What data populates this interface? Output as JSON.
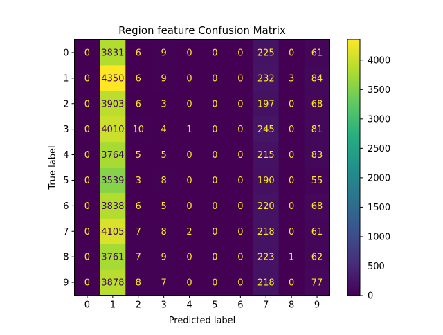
{
  "chart_data": {
    "type": "heatmap",
    "title": "Region feature Confusion Matrix",
    "xlabel": "Predicted label",
    "ylabel": "True label",
    "x_categories": [
      "0",
      "1",
      "2",
      "3",
      "4",
      "5",
      "6",
      "7",
      "8",
      "9"
    ],
    "y_categories": [
      "0",
      "1",
      "2",
      "3",
      "4",
      "5",
      "6",
      "7",
      "8",
      "9"
    ],
    "matrix": [
      [
        0,
        3831,
        6,
        9,
        0,
        0,
        0,
        225,
        0,
        61
      ],
      [
        0,
        4350,
        6,
        9,
        0,
        0,
        0,
        232,
        3,
        84
      ],
      [
        0,
        3903,
        6,
        3,
        0,
        0,
        0,
        197,
        0,
        68
      ],
      [
        0,
        4010,
        10,
        4,
        1,
        0,
        0,
        245,
        0,
        81
      ],
      [
        0,
        3764,
        5,
        5,
        0,
        0,
        0,
        215,
        0,
        83
      ],
      [
        0,
        3539,
        3,
        8,
        0,
        0,
        0,
        190,
        0,
        55
      ],
      [
        0,
        3838,
        6,
        5,
        0,
        0,
        0,
        220,
        0,
        68
      ],
      [
        0,
        4105,
        7,
        8,
        2,
        0,
        0,
        218,
        0,
        61
      ],
      [
        0,
        3761,
        7,
        9,
        0,
        0,
        0,
        223,
        1,
        62
      ],
      [
        0,
        3878,
        8,
        7,
        0,
        0,
        0,
        218,
        0,
        77
      ]
    ],
    "colormap": "viridis",
    "value_range": [
      0,
      4350
    ],
    "colorbar_ticks": [
      0,
      500,
      1000,
      1500,
      2000,
      2500,
      3000,
      3500,
      4000
    ]
  }
}
